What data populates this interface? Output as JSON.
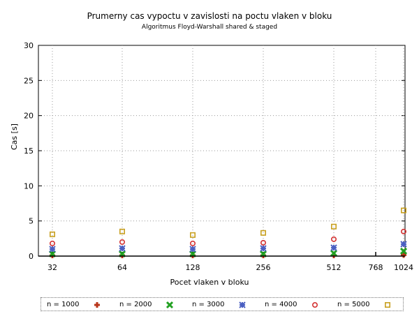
{
  "chart_data": {
    "type": "scatter",
    "title": "Prumerny cas vypoctu v zavislosti na poctu vlaken v bloku",
    "subtitle": "Algoritmus Floyd-Warshall shared & staged",
    "xlabel": "Pocet vlaken v bloku",
    "ylabel": "Cas [s]",
    "ylim": [
      0,
      30
    ],
    "yticks": [
      "0",
      "5",
      "10",
      "15",
      "20",
      "25",
      "30"
    ],
    "xticks": [
      "32",
      "64",
      "128",
      "256",
      "512",
      "768",
      "1024"
    ],
    "grid": true,
    "legend_position": "bottom",
    "categories": [
      "32",
      "64",
      "128",
      "256",
      "512",
      "1024"
    ],
    "series": [
      {
        "name": "n = 1000",
        "marker": "plus",
        "color": "#b8351a",
        "values": [
          0.1,
          0.1,
          0.1,
          0.1,
          0.1,
          0.15
        ]
      },
      {
        "name": "n = 2000",
        "marker": "cross",
        "color": "#22a022",
        "values": [
          0.3,
          0.3,
          0.3,
          0.3,
          0.4,
          0.7
        ]
      },
      {
        "name": "n = 3000",
        "marker": "star",
        "color": "#4a5fc1",
        "values": [
          1.0,
          1.1,
          1.0,
          1.1,
          1.2,
          1.7
        ]
      },
      {
        "name": "n = 4000",
        "marker": "circle",
        "color": "#d43333",
        "values": [
          1.8,
          2.0,
          1.8,
          1.9,
          2.4,
          3.5
        ]
      },
      {
        "name": "n = 5000",
        "marker": "square",
        "color": "#c8a020",
        "values": [
          3.1,
          3.5,
          3.0,
          3.3,
          4.2,
          6.5
        ]
      }
    ]
  }
}
